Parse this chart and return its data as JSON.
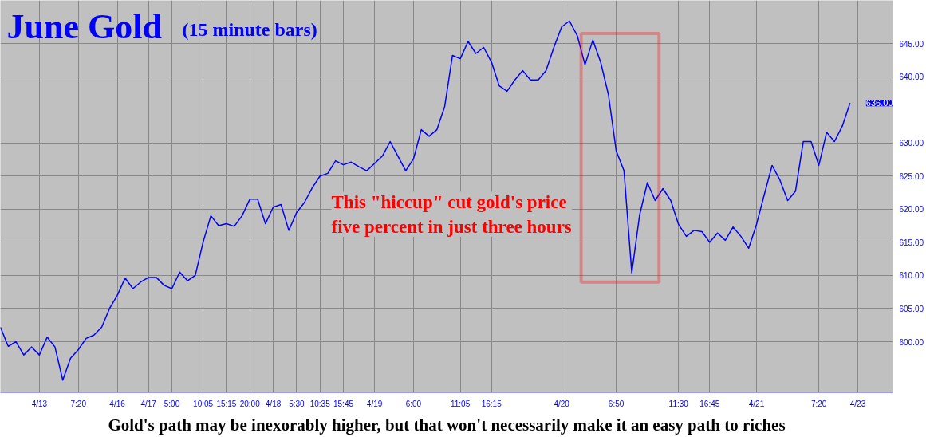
{
  "chart_data": {
    "type": "line",
    "title": "June Gold",
    "subtitle": "(15 minute bars)",
    "categories": [
      null,
      null,
      null,
      null,
      null,
      "4/13",
      null,
      null,
      null,
      null,
      "7:20",
      null,
      null,
      null,
      null,
      "4/16",
      null,
      null,
      null,
      "4/17",
      null,
      null,
      "5:00",
      null,
      null,
      null,
      "10:05",
      null,
      null,
      "15:15",
      null,
      null,
      "20:00",
      null,
      null,
      "4/18",
      null,
      null,
      "5:30",
      null,
      null,
      "10:35",
      null,
      null,
      "15:45",
      null,
      null,
      null,
      "4/19",
      null,
      null,
      null,
      null,
      "6:00",
      null,
      null,
      null,
      null,
      null,
      "11:05",
      null,
      null,
      null,
      "16:15",
      null,
      null,
      null,
      null,
      null,
      null,
      null,
      null,
      "4/20",
      null,
      null,
      null,
      null,
      null,
      null,
      "6:50",
      null,
      null,
      null,
      null,
      null,
      null,
      null,
      "11:30",
      null,
      null,
      null,
      "16:45",
      null,
      null,
      null,
      null,
      null,
      "4/21",
      null,
      null,
      null,
      null,
      null,
      null,
      null,
      "7:20",
      null,
      null,
      null,
      null,
      "4/23"
    ],
    "series": [
      {
        "color": "#0000ff",
        "values": [
          602.2,
          599.3,
          600,
          598,
          599.2,
          598,
          600.7,
          599.2,
          594.2,
          597.5,
          598.8,
          600.5,
          601,
          602.2,
          605,
          607,
          609.6,
          608,
          609,
          609.7,
          609.7,
          608.5,
          608,
          610.5,
          609.2,
          610,
          615,
          619,
          617.5,
          617.8,
          617.4,
          619,
          621.5,
          621.5,
          617.8,
          620.3,
          620.7,
          616.8,
          619.5,
          621,
          623.2,
          625,
          625.4,
          627.3,
          626.7,
          627.1,
          626.4,
          625.8,
          626.9,
          628,
          630.2,
          628,
          625.8,
          627.6,
          632,
          631,
          632,
          635.5,
          643.2,
          642.7,
          645.3,
          643.5,
          644.4,
          642.2,
          638.6,
          637.8,
          639.5,
          640.9,
          639.5,
          639.5,
          640.9,
          644.4,
          647.5,
          648.4,
          646.2,
          641.8,
          645.5,
          642.2,
          637.3,
          628.8,
          625.8,
          610.4,
          619.1,
          624,
          621.3,
          623.1,
          621.3,
          617.7,
          615.9,
          616.8,
          616.6,
          615,
          616.4,
          615.3,
          617.3,
          615.9,
          614.1,
          617.7,
          622.2,
          626.6,
          624.4,
          621.3,
          622.7,
          630.2,
          630.2,
          626.6,
          631.6,
          630.2,
          632.5,
          636,
          null
        ]
      }
    ],
    "ylim": [
      592.3,
      651.5
    ],
    "yticks": [
      {
        "value": 600,
        "label": "600.00"
      },
      {
        "value": 605,
        "label": "605.00"
      },
      {
        "value": 610,
        "label": "610.00"
      },
      {
        "value": 615,
        "label": "615.00"
      },
      {
        "value": 620,
        "label": "620.00"
      },
      {
        "value": 625,
        "label": "625.00"
      },
      {
        "value": 630,
        "label": "630.00"
      },
      {
        "value": 640,
        "label": "640.00"
      },
      {
        "value": 645,
        "label": "645.00"
      }
    ],
    "grid": true,
    "annotations": [
      "This \"hiccup\" cut gold's price\nfive percent in just three hours",
      "Gold's path may be inexorably higher, but that won't necessarily make it an easy path to riches",
      "636.00"
    ]
  }
}
